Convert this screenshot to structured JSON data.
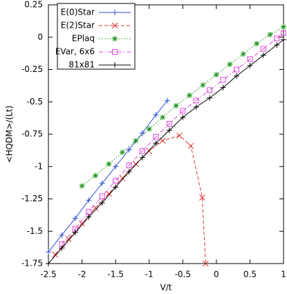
{
  "chart_data": {
    "type": "line",
    "xlabel": "V/t",
    "ylabel": "<HQDM>/(Lt)",
    "xlim": [
      -2.5,
      1
    ],
    "xticks": [
      -2.5,
      -2,
      -1.5,
      -1,
      -0.5,
      0,
      0.5,
      1
    ],
    "ylim": [
      -1.75,
      0.25
    ],
    "yticks": [
      -1.75,
      -1.5,
      -1.25,
      -1,
      -0.75,
      -0.5,
      -0.25,
      0,
      0.25
    ],
    "legend": "upper left",
    "series": [
      {
        "name": "E(0)Star",
        "color": "#2a4cd0",
        "dash": "solid",
        "marker": "plus",
        "x": [
          -2.5,
          -2.3,
          -2.1,
          -1.9,
          -1.7,
          -1.5,
          -1.3,
          -1.1,
          -0.9,
          -0.73
        ],
        "values": [
          -1.66,
          -1.53,
          -1.4,
          -1.26,
          -1.13,
          -1.0,
          -0.87,
          -0.74,
          -0.6,
          -0.49
        ]
      },
      {
        "name": "E(2)Star",
        "color": "#e03030",
        "dash": "dashed",
        "marker": "cross",
        "x": [
          -2.4,
          -2.2,
          -2.0,
          -1.8,
          -1.6,
          -1.4,
          -1.2,
          -1.0,
          -0.8,
          -0.55,
          -0.38,
          -0.21,
          -0.16
        ],
        "values": [
          -1.68,
          -1.56,
          -1.44,
          -1.32,
          -1.21,
          -1.09,
          -0.98,
          -0.88,
          -0.8,
          -0.76,
          -0.84,
          -1.24,
          -1.75
        ]
      },
      {
        "name": "EPlaq",
        "color": "#109010",
        "dash": "dotted",
        "marker": "star",
        "x": [
          -2.0,
          -1.8,
          -1.6,
          -1.4,
          -1.2,
          -1.0,
          -0.8,
          -0.6,
          -0.4,
          -0.2,
          0,
          0.2,
          0.4,
          0.6,
          0.8,
          1.0
        ],
        "values": [
          -1.15,
          -1.07,
          -0.98,
          -0.89,
          -0.8,
          -0.71,
          -0.62,
          -0.53,
          -0.45,
          -0.37,
          -0.29,
          -0.21,
          -0.13,
          -0.05,
          0.02,
          0.08
        ]
      },
      {
        "name": "EVar, 6x6",
        "color": "#e040e0",
        "dash": "dashdot",
        "marker": "square",
        "x": [
          -2.3,
          -2.1,
          -1.9,
          -1.7,
          -1.5,
          -1.3,
          -1.1,
          -0.9,
          -0.7,
          -0.5,
          -0.3,
          -0.1,
          0.1,
          0.3,
          0.5,
          0.7,
          0.9,
          1.0
        ],
        "values": [
          -1.6,
          -1.48,
          -1.35,
          -1.23,
          -1.11,
          -0.99,
          -0.88,
          -0.77,
          -0.67,
          -0.57,
          -0.49,
          -0.41,
          -0.33,
          -0.25,
          -0.17,
          -0.09,
          -0.01,
          0.03
        ]
      },
      {
        "name": "81x81",
        "color": "#000000",
        "dash": "solid",
        "marker": "plus",
        "x": [
          -2.5,
          -2.3,
          -2.1,
          -1.9,
          -1.7,
          -1.5,
          -1.3,
          -1.1,
          -0.9,
          -0.7,
          -0.5,
          -0.3,
          -0.1,
          0.1,
          0.3,
          0.5,
          0.7,
          0.9,
          1.0
        ],
        "values": [
          -1.75,
          -1.63,
          -1.51,
          -1.39,
          -1.28,
          -1.16,
          -1.04,
          -0.93,
          -0.82,
          -0.72,
          -0.62,
          -0.54,
          -0.47,
          -0.39,
          -0.3,
          -0.22,
          -0.14,
          -0.06,
          -0.02
        ]
      }
    ]
  }
}
